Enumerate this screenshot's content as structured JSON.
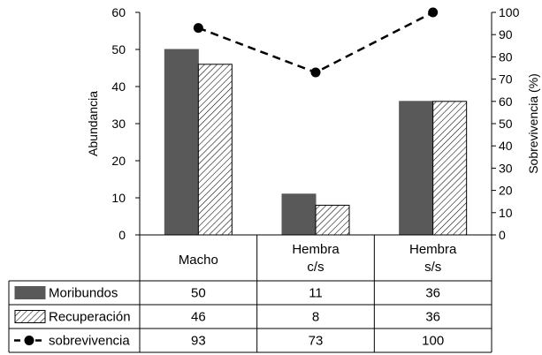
{
  "chart_data": {
    "type": "bar",
    "categories": [
      "Macho",
      "Hembra\nc/s",
      "Hembra\ns/s"
    ],
    "series": [
      {
        "name": "Moribundos",
        "values": [
          50,
          11,
          36
        ],
        "color": "#595959",
        "fill": "solid",
        "axis": "left"
      },
      {
        "name": "Recuperación",
        "values": [
          46,
          8,
          36
        ],
        "color": "#ffffff",
        "fill": "diagonal-hatch",
        "axis": "left"
      },
      {
        "name": "sobrevivencia",
        "values": [
          93,
          73,
          100
        ],
        "color": "#000000",
        "type": "line",
        "style": "dashed-with-circle-markers",
        "axis": "right"
      }
    ],
    "ylabel": "Abundancia",
    "ylim": [
      0,
      60
    ],
    "yticks": [
      0,
      10,
      20,
      30,
      40,
      50,
      60
    ],
    "y2label": "Sobrevivencia (%)",
    "y2lim": [
      0,
      100
    ],
    "y2ticks": [
      0,
      10,
      20,
      30,
      40,
      50,
      60,
      70,
      80,
      90,
      100
    ],
    "legend": "data-table-below",
    "data_table": true,
    "grid": false
  }
}
